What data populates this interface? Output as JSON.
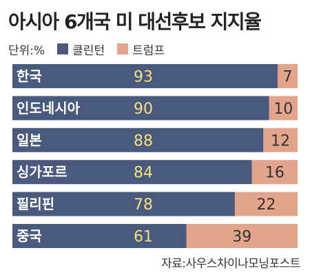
{
  "title": "아시아 6개국 미 대선후보 지지율",
  "legend": {
    "unit": "단위:%",
    "clinton_label": "클린턴",
    "trump_label": "트럼프"
  },
  "source": "자료:사우스차이나모닝포스트",
  "colors": {
    "clinton": "#4a5a7e",
    "trump": "#e2a58c",
    "clinton_value_text": "#f2e07a",
    "trump_value_text": "#333333",
    "country_text": "#ffffff"
  },
  "chart_data": {
    "type": "bar",
    "orientation": "horizontal",
    "stacked": true,
    "categories": [
      "한국",
      "인도네시아",
      "일본",
      "싱가포르",
      "필리핀",
      "중국"
    ],
    "series": [
      {
        "name": "클린턴",
        "values": [
          93,
          90,
          88,
          84,
          78,
          61
        ]
      },
      {
        "name": "트럼프",
        "values": [
          7,
          10,
          12,
          16,
          22,
          39
        ]
      }
    ],
    "xlim": [
      0,
      100
    ],
    "grid": false,
    "legend_position": "top-left"
  }
}
